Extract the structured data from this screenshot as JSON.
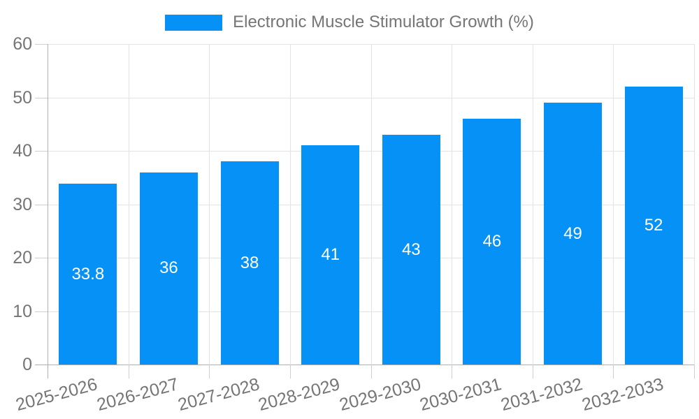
{
  "chart_data": {
    "type": "bar",
    "title": "Electronic Muscle Stimulator Growth (%)",
    "series_name": "Electronic Muscle Stimulator Growth (%)",
    "categories": [
      "2025-2026",
      "2026-2027",
      "2027-2028",
      "2028-2029",
      "2029-2030",
      "2030-2031",
      "2031-2032",
      "2032-2033"
    ],
    "values": [
      33.8,
      36,
      38,
      41,
      43,
      46,
      49,
      52
    ],
    "data_labels": [
      "33.8",
      "36",
      "38",
      "41",
      "43",
      "46",
      "49",
      "52"
    ],
    "xlabel": "",
    "ylabel": "",
    "ylim": [
      0,
      60
    ],
    "yticks": [
      0,
      10,
      20,
      30,
      40,
      50,
      60
    ],
    "grid": true,
    "legend_position": "top"
  },
  "legend": {
    "label": "Electronic Muscle Stimulator Growth (%)"
  },
  "colors": {
    "bar": "#0591F5",
    "data_label": "#FFFFFF",
    "gridline": "#E3E3E3",
    "axis_line": "#B0B0B0",
    "tick": "#CFCFCF",
    "tick_label": "#757575",
    "background": "#FFFFFF"
  }
}
